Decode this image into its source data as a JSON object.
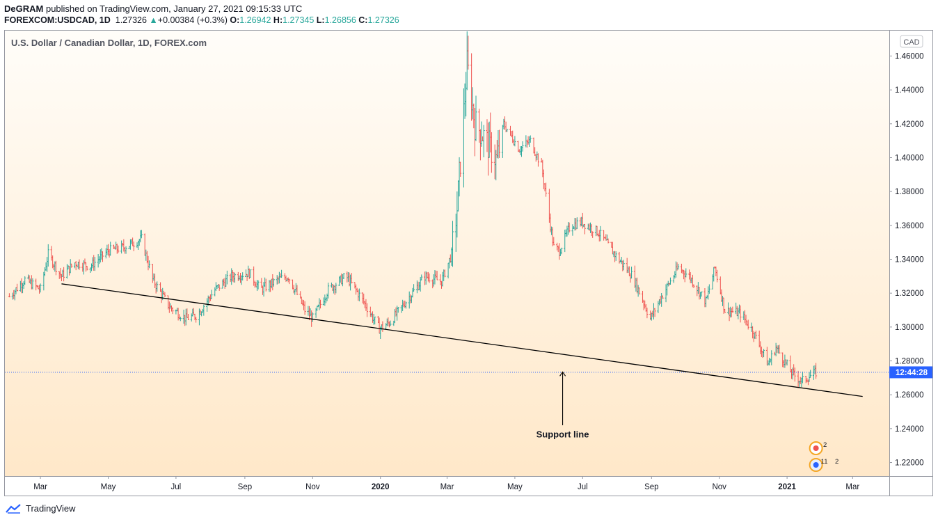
{
  "header": {
    "author": "DeGRAM",
    "published_text": "published on TradingView.com, January 27, 2021 09:15:33 UTC",
    "symbol": "FOREXCOM:USDCAD, 1D",
    "last": "1.27326",
    "change_arrow": "▲",
    "change": "+0.00384 (+0.3%)",
    "o_label": "O:",
    "o_value": "1.26942",
    "h_label": "H:",
    "h_value": "1.27345",
    "l_label": "L:",
    "l_value": "1.26856",
    "c_label": "C:",
    "c_value": "1.27326"
  },
  "footer": {
    "brand": "TradingView"
  },
  "colors": {
    "up": "#26a69a",
    "down": "#ef5350",
    "trendline": "#000000",
    "price_label_bg": "#2962ff",
    "bg_top": "#fffdf9",
    "bg_bottom": "#ffe8c9"
  },
  "chart_data": {
    "type": "ohlc",
    "title": "U.S. Dollar / Canadian Dollar, 1D, FOREX.com",
    "currency": "CAD",
    "countdown_label": "12:44:28",
    "last_price": 1.27326,
    "ylim": [
      1.212,
      1.475
    ],
    "y_ticks": [
      "1.22000",
      "1.24000",
      "1.26000",
      "1.28000",
      "1.30000",
      "1.32000",
      "1.34000",
      "1.36000",
      "1.38000",
      "1.40000",
      "1.42000",
      "1.44000",
      "1.46000"
    ],
    "x_ticks": [
      {
        "label": "Mar",
        "date": "2019-03-01",
        "bold": false
      },
      {
        "label": "May",
        "date": "2019-05-01",
        "bold": false
      },
      {
        "label": "Jul",
        "date": "2019-07-01",
        "bold": false
      },
      {
        "label": "Sep",
        "date": "2019-09-01",
        "bold": false
      },
      {
        "label": "Nov",
        "date": "2019-11-01",
        "bold": false
      },
      {
        "label": "2020",
        "date": "2020-01-01",
        "bold": true
      },
      {
        "label": "Mar",
        "date": "2020-03-01",
        "bold": false
      },
      {
        "label": "May",
        "date": "2020-05-01",
        "bold": false
      },
      {
        "label": "Jul",
        "date": "2020-07-01",
        "bold": false
      },
      {
        "label": "Sep",
        "date": "2020-09-01",
        "bold": false
      },
      {
        "label": "Nov",
        "date": "2020-11-01",
        "bold": false
      },
      {
        "label": "2021",
        "date": "2021-01-01",
        "bold": true
      },
      {
        "label": "Mar",
        "date": "2021-03-01",
        "bold": false
      }
    ],
    "xlim": [
      "2019-01-28",
      "2021-04-03"
    ],
    "path_key_points": [
      [
        "2019-02-01",
        1.318
      ],
      [
        "2019-02-15",
        1.328
      ],
      [
        "2019-03-01",
        1.322
      ],
      [
        "2019-03-08",
        1.343
      ],
      [
        "2019-03-20",
        1.33
      ],
      [
        "2019-04-01",
        1.338
      ],
      [
        "2019-04-15",
        1.336
      ],
      [
        "2019-05-01",
        1.345
      ],
      [
        "2019-05-15",
        1.347
      ],
      [
        "2019-05-31",
        1.352
      ],
      [
        "2019-06-10",
        1.328
      ],
      [
        "2019-06-25",
        1.312
      ],
      [
        "2019-07-10",
        1.305
      ],
      [
        "2019-07-20",
        1.307
      ],
      [
        "2019-08-05",
        1.322
      ],
      [
        "2019-08-20",
        1.33
      ],
      [
        "2019-09-05",
        1.332
      ],
      [
        "2019-09-15",
        1.322
      ],
      [
        "2019-10-01",
        1.328
      ],
      [
        "2019-10-10",
        1.33
      ],
      [
        "2019-10-25",
        1.31
      ],
      [
        "2019-11-01",
        1.305
      ],
      [
        "2019-11-15",
        1.322
      ],
      [
        "2019-12-01",
        1.33
      ],
      [
        "2019-12-15",
        1.317
      ],
      [
        "2019-12-31",
        1.299
      ],
      [
        "2020-01-10",
        1.303
      ],
      [
        "2020-01-25",
        1.316
      ],
      [
        "2020-02-10",
        1.33
      ],
      [
        "2020-02-25",
        1.327
      ],
      [
        "2020-03-05",
        1.343
      ],
      [
        "2020-03-10",
        1.37
      ],
      [
        "2020-03-19",
        1.455
      ],
      [
        "2020-03-26",
        1.42
      ],
      [
        "2020-04-01",
        1.415
      ],
      [
        "2020-04-15",
        1.398
      ],
      [
        "2020-04-21",
        1.42
      ],
      [
        "2020-05-05",
        1.405
      ],
      [
        "2020-05-15",
        1.41
      ],
      [
        "2020-05-25",
        1.395
      ],
      [
        "2020-06-05",
        1.347
      ],
      [
        "2020-06-10",
        1.345
      ],
      [
        "2020-06-20",
        1.36
      ],
      [
        "2020-06-30",
        1.362
      ],
      [
        "2020-07-15",
        1.356
      ],
      [
        "2020-07-31",
        1.342
      ],
      [
        "2020-08-15",
        1.33
      ],
      [
        "2020-08-31",
        1.305
      ],
      [
        "2020-09-10",
        1.318
      ],
      [
        "2020-09-25",
        1.335
      ],
      [
        "2020-10-05",
        1.33
      ],
      [
        "2020-10-20",
        1.315
      ],
      [
        "2020-10-28",
        1.335
      ],
      [
        "2020-11-06",
        1.31
      ],
      [
        "2020-11-20",
        1.308
      ],
      [
        "2020-12-01",
        1.298
      ],
      [
        "2020-12-15",
        1.278
      ],
      [
        "2020-12-22",
        1.288
      ],
      [
        "2021-01-05",
        1.273
      ],
      [
        "2021-01-14",
        1.268
      ],
      [
        "2021-01-27",
        1.27326
      ]
    ],
    "trendline": {
      "start": [
        "2019-03-20",
        1.3255
      ],
      "end": [
        "2021-03-10",
        1.259
      ]
    },
    "annotation": {
      "text": "Support line",
      "arrow_from": [
        "2020-06-13",
        1.242
      ],
      "arrow_to": [
        "2020-06-13",
        1.2735
      ],
      "text_at": [
        "2020-06-13",
        1.2365
      ]
    },
    "event_badges": [
      "2",
      "11",
      "2"
    ]
  }
}
